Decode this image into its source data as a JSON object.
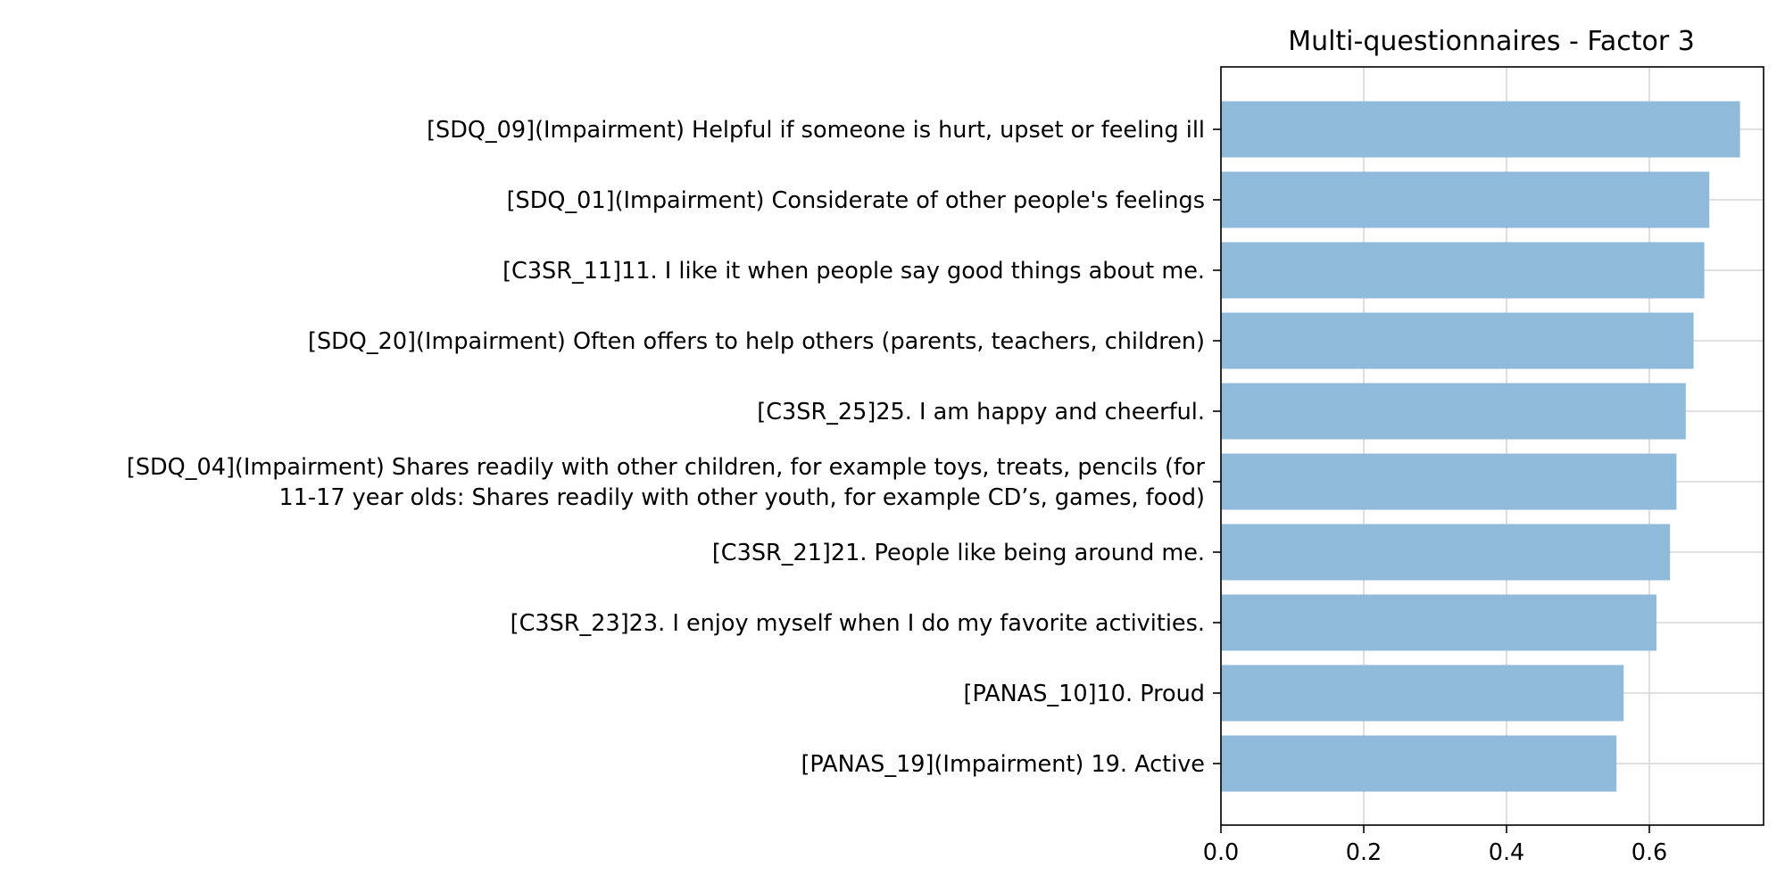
{
  "chart_data": {
    "type": "bar",
    "orientation": "horizontal",
    "title": "Multi-questionnaires - Factor 3",
    "xlabel": "",
    "ylabel": "",
    "xlim": [
      0,
      0.76
    ],
    "xticks": [
      "0.0",
      "0.2",
      "0.4",
      "0.6"
    ],
    "grid": true,
    "bar_color": "#8fbad9",
    "categories": [
      [
        "[SDQ_09](Impairment) Helpful if someone is hurt, upset or feeling ill"
      ],
      [
        "[SDQ_01](Impairment) Considerate of other people's feelings"
      ],
      [
        "[C3SR_11]11. I like it when people say good things about me."
      ],
      [
        "[SDQ_20](Impairment) Often offers to help others (parents, teachers, children)"
      ],
      [
        "[C3SR_25]25. I am happy and cheerful."
      ],
      [
        "[SDQ_04](Impairment) Shares readily with other children, for example toys, treats, pencils (for",
        "11-17 year olds: Shares readily with other youth, for example CD’s, games, food)"
      ],
      [
        "[C3SR_21]21. People like being around me."
      ],
      [
        "[C3SR_23]23. I enjoy myself when I do my favorite activities."
      ],
      [
        "[PANAS_10]10. Proud"
      ],
      [
        "[PANAS_19](Impairment) 19. Active"
      ]
    ],
    "values": [
      0.727,
      0.684,
      0.677,
      0.662,
      0.651,
      0.638,
      0.629,
      0.61,
      0.564,
      0.554
    ]
  }
}
